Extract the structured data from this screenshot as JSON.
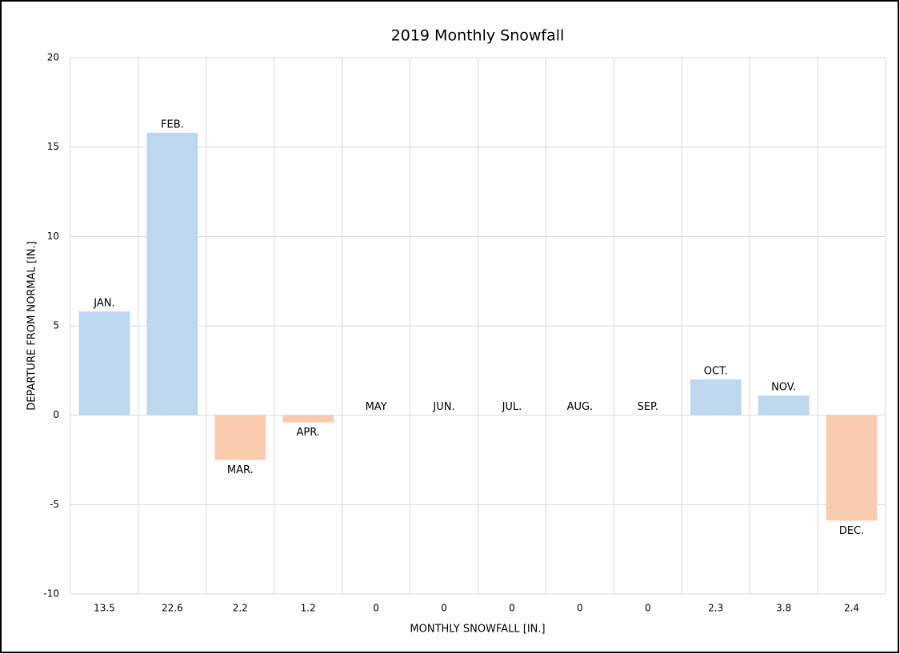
{
  "chart_data": {
    "type": "bar",
    "title": "2019 Monthly Snowfall",
    "x_label": "MONTHLY SNOWFALL [IN.]",
    "y_label": "DEPARTURE FROM NORMAL [IN.]",
    "categories": [
      "13.5",
      "22.6",
      "2.2",
      "1.2",
      "0",
      "0",
      "0",
      "0",
      "0",
      "2.3",
      "3.8",
      "2.4"
    ],
    "values": [
      5.8,
      15.8,
      -2.5,
      -0.4,
      0,
      0,
      0,
      0,
      0,
      2.0,
      1.1,
      -5.9
    ],
    "bar_labels": [
      "JAN.",
      "FEB.",
      "MAR.",
      "APR.",
      "MAY",
      "JUN.",
      "JUL.",
      "AUG.",
      "SEP.",
      "OCT.",
      "NOV.",
      "DEC."
    ],
    "positive_color": "#bdd7ee",
    "negative_color": "#f8cbad",
    "ylim": [
      -10,
      20
    ],
    "yticks": [
      -10,
      -5,
      0,
      5,
      10,
      15,
      20
    ],
    "grid": true
  }
}
